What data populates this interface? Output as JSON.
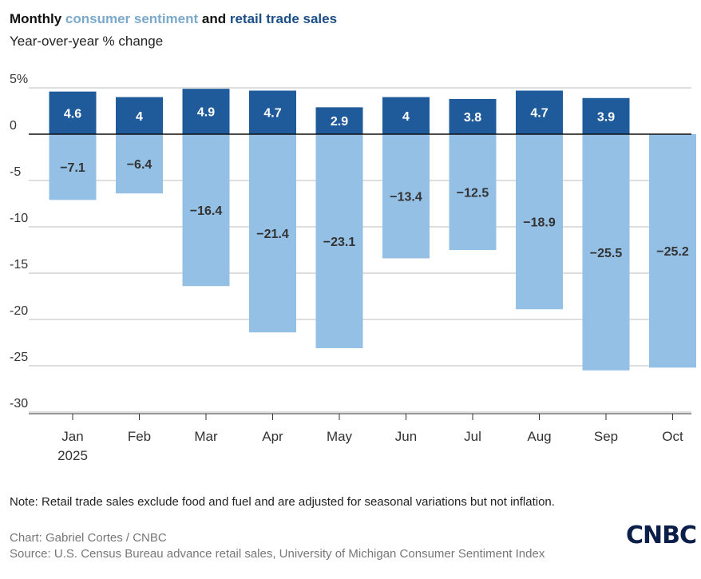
{
  "title": {
    "part1": "Monthly",
    "part2": "consumer sentiment",
    "part3": "and",
    "part4": "retail trade sales"
  },
  "subtitle": "Year-over-year % change",
  "note": "Note: Retail trade sales exclude food and fuel and are adjusted for seasonal variations but not inflation.",
  "credit": "Chart: Gabriel Cortes / CNBC",
  "source": "Source: U.S. Census Bureau advance retail sales, University of Michigan Consumer Sentiment Index",
  "logo": "CNBC",
  "colors": {
    "consumer_sentiment": "#93c0e4",
    "retail_trade_sales": "#1f5b9b"
  },
  "chart_data": {
    "type": "bar",
    "categories": [
      "Jan",
      "Feb",
      "Mar",
      "Apr",
      "May",
      "Jun",
      "Jul",
      "Aug",
      "Sep",
      "Oct"
    ],
    "year_label": "2025",
    "series": [
      {
        "name": "consumer sentiment",
        "values": [
          -7.1,
          -6.4,
          -16.4,
          -21.4,
          -23.1,
          -13.4,
          -12.5,
          -18.9,
          -25.5,
          -25.2
        ]
      },
      {
        "name": "retail trade sales",
        "values": [
          4.6,
          4,
          4.9,
          4.7,
          2.9,
          4,
          3.8,
          4.7,
          3.9,
          null
        ]
      }
    ],
    "yticks": [
      "5%",
      "0",
      "-5",
      "-10",
      "-15",
      "-20",
      "-25",
      "-30"
    ],
    "ytick_values": [
      5,
      0,
      -5,
      -10,
      -15,
      -20,
      -25,
      -30
    ],
    "ylim": [
      -30,
      5
    ],
    "grid": true,
    "data_labels": true
  }
}
